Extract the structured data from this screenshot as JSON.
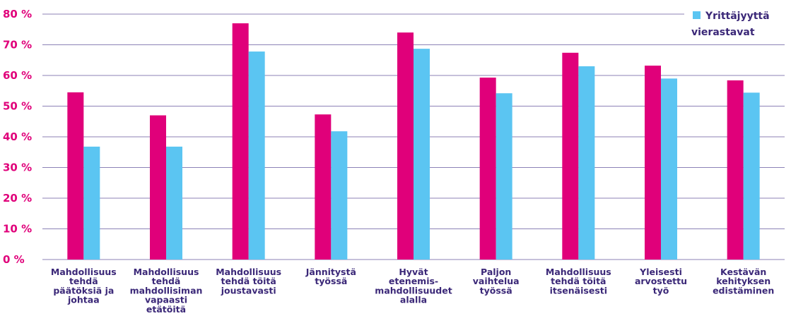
{
  "chart_data": {
    "type": "bar",
    "categories": [
      [
        "Mahdollisuus",
        "tehdä",
        "päätöksiä ja",
        "johtaa"
      ],
      [
        "Mahdollisuus",
        "tehdä",
        "mahdollisiman",
        "vapaasti",
        "etätöitä"
      ],
      [
        "Mahdollisuus",
        "tehdä töitä",
        "joustavasti"
      ],
      [
        "Jännitystä",
        "työssä"
      ],
      [
        "Hyvät",
        "etenemis-",
        "mahdollisuudet",
        "alalla"
      ],
      [
        "Paljon",
        "vaihtelua",
        "työssä"
      ],
      [
        "Mahdollisuus",
        "tehdä töitä",
        "itsenäisesti"
      ],
      [
        "Yleisesti",
        "arvostettu",
        "työ"
      ],
      [
        "Kestävän",
        "kehityksen",
        "edistäminen"
      ]
    ],
    "series": [
      {
        "name": "",
        "color": "#e0007a",
        "values": [
          54.5,
          47,
          77,
          47.3,
          74,
          59.3,
          67.4,
          63.2,
          58.4
        ]
      },
      {
        "name": "Yrittäjyyttä vierastavat",
        "color": "#5bc5f2",
        "values": [
          36.8,
          36.8,
          67.8,
          41.8,
          68.7,
          54.2,
          63,
          59,
          54.4
        ]
      }
    ],
    "yticks": [
      "0 %",
      "10 %",
      "20 %",
      "30 %",
      "40 %",
      "50 %",
      "60 %",
      "70 %",
      "80 %"
    ],
    "ylim": [
      0,
      80
    ],
    "grid": true,
    "legend_position": "top-right",
    "legend_lines": [
      "Yrittäjyyttä",
      "vierastavat"
    ]
  }
}
